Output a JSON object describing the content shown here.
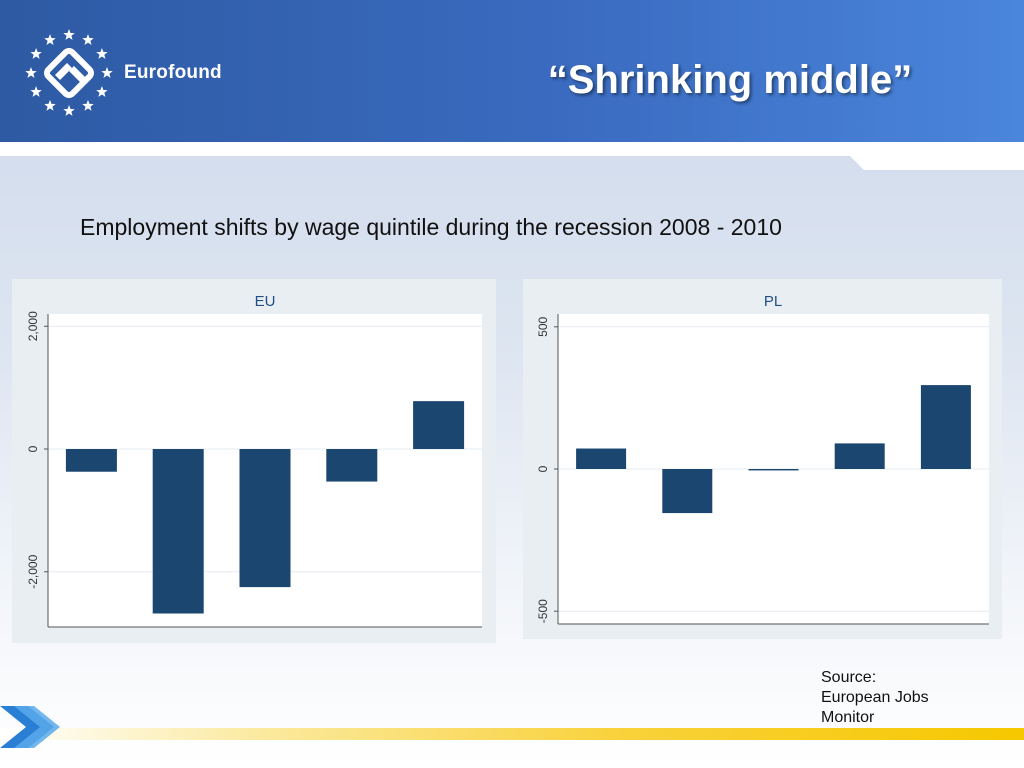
{
  "header": {
    "brand": "Eurofound",
    "title": "“Shrinking middle”",
    "logo_icon": "eurofound-stars-logo-icon",
    "bg_color": "#3a6bc0"
  },
  "subtitle": "Employment shifts by wage quintile during the recession 2008 - 2010",
  "source": {
    "line1": "Source:",
    "line2": "European Jobs",
    "line3": "Monitor"
  },
  "footer": {
    "arrow_icon": "arrow-right-icon",
    "bar_color": "#f6c800"
  },
  "chart_data": [
    {
      "type": "bar",
      "title": "EU",
      "categories": [
        "",
        "",
        "",
        "",
        ""
      ],
      "values": [
        -370,
        -2680,
        -2250,
        -530,
        780
      ],
      "ylim": [
        -2900,
        2200
      ],
      "yticks": [
        -2000,
        0,
        2000
      ],
      "ytick_labels": [
        "-2,000",
        "0",
        "2,000"
      ],
      "grid": true,
      "bar_color": "#1a4670"
    },
    {
      "type": "bar",
      "title": "PL",
      "categories": [
        "",
        "",
        "",
        "",
        ""
      ],
      "values": [
        72,
        -155,
        -5,
        90,
        295
      ],
      "ylim": [
        -545,
        545
      ],
      "yticks": [
        -500,
        0,
        500
      ],
      "ytick_labels": [
        "-500",
        "0",
        "500"
      ],
      "grid": true,
      "bar_color": "#1a4670"
    }
  ]
}
